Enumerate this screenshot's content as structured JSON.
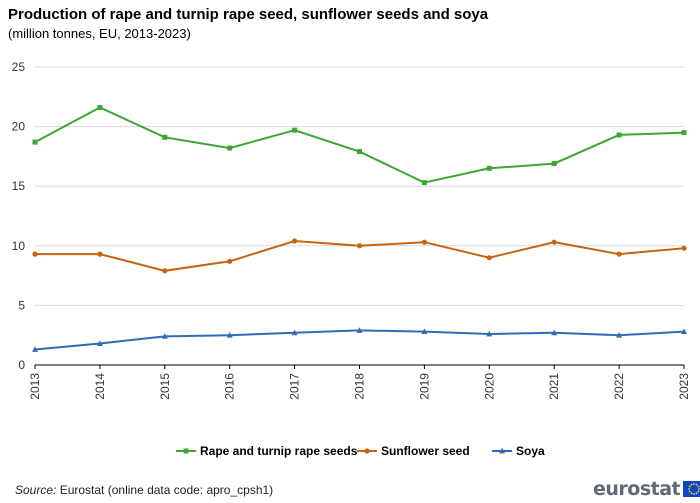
{
  "header": {
    "title": "Production of rape and turnip rape seed, sunflower seeds and soya",
    "subtitle": "(million tonnes, EU, 2013-2023)"
  },
  "chart_data": {
    "type": "line",
    "x": [
      "2013",
      "2014",
      "2015",
      "2016",
      "2017",
      "2018",
      "2019",
      "2020",
      "2021",
      "2022",
      "2023"
    ],
    "ylim": [
      0,
      25
    ],
    "yticks": [
      0,
      5,
      10,
      15,
      20,
      25
    ],
    "grid": true,
    "legend_position": "bottom",
    "series": [
      {
        "name": "Rape and turnip rape seeds",
        "color": "#3fa535",
        "marker": "square",
        "values": [
          18.7,
          21.6,
          19.1,
          18.2,
          19.7,
          17.9,
          15.3,
          16.5,
          16.9,
          19.3,
          19.5
        ]
      },
      {
        "name": "Sunflower seed",
        "color": "#c8640f",
        "marker": "circle",
        "values": [
          9.3,
          9.3,
          7.9,
          8.7,
          10.4,
          10.0,
          10.3,
          9.0,
          10.3,
          9.3,
          9.8
        ]
      },
      {
        "name": "Soya",
        "color": "#2e6db4",
        "marker": "triangle",
        "values": [
          1.3,
          1.8,
          2.4,
          2.5,
          2.7,
          2.9,
          2.8,
          2.6,
          2.7,
          2.5,
          2.8
        ]
      }
    ]
  },
  "footer": {
    "source_label": "Source:",
    "source_text": "Eurostat (online data code: apro_cpsh1)",
    "logo_text": "eurostat"
  }
}
